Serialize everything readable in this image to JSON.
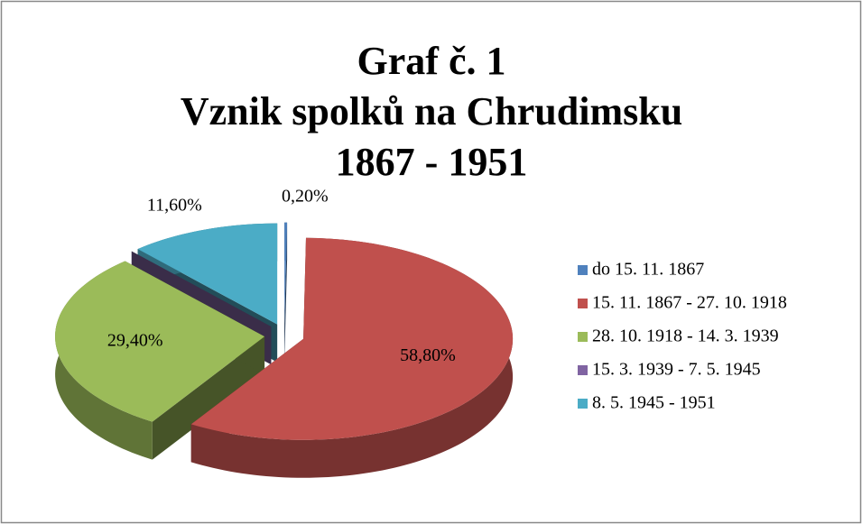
{
  "chart_data": {
    "type": "pie",
    "title": [
      "Graf č. 1",
      "Vznik spolků na Chrudimsku",
      "1867 - 1951"
    ],
    "categories": [
      "do 15. 11. 1867",
      "15. 11. 1867 - 27. 10. 1918",
      "28. 10. 1918 - 14. 3. 1939",
      "15. 3. 1939 - 7. 5. 1945",
      "8. 5. 1945 - 1951"
    ],
    "values": [
      0.2,
      58.8,
      29.4,
      0,
      11.6
    ],
    "value_labels": [
      "0,20%",
      "58,80%",
      "29,40%",
      null,
      "11,60%"
    ],
    "colors": [
      "#4f81bd",
      "#c0504d",
      "#9bbb59",
      "#8064a2",
      "#4bacc6"
    ],
    "legend": "right"
  }
}
